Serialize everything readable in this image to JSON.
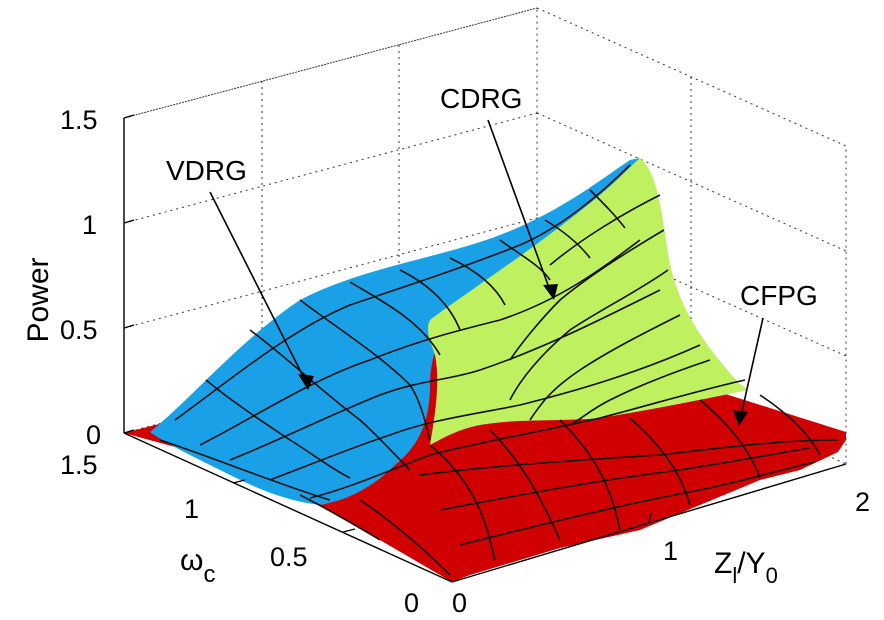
{
  "chart_data": {
    "type": "surface",
    "title": "",
    "xlabel": "Z",
    "xlabel_sub": "l",
    "xlabel_sep": "/Y",
    "xlabel_sub2": "0",
    "ylabel_main": "ω",
    "ylabel_sub": "c",
    "zlabel": "Power",
    "x_range": [
      0,
      2
    ],
    "y_range": [
      0,
      1.5
    ],
    "z_range": [
      0,
      1.5
    ],
    "x_ticks": [
      "0",
      "1",
      "2"
    ],
    "y_ticks": [
      "0",
      "0.5",
      "1",
      "1.5"
    ],
    "z_ticks": [
      "0",
      "0.5",
      "1",
      "1.5"
    ],
    "grid": true,
    "regions": [
      {
        "name": "VDRG",
        "color": "#1aa0e6",
        "z_approx": 1.0
      },
      {
        "name": "CDRG",
        "color": "#bff060",
        "z_approx": 1.3
      },
      {
        "name": "CFPG",
        "color": "#d00000",
        "z_approx": 0.15
      }
    ],
    "annotations": [
      "VDRG",
      "CDRG",
      "CFPG"
    ]
  }
}
